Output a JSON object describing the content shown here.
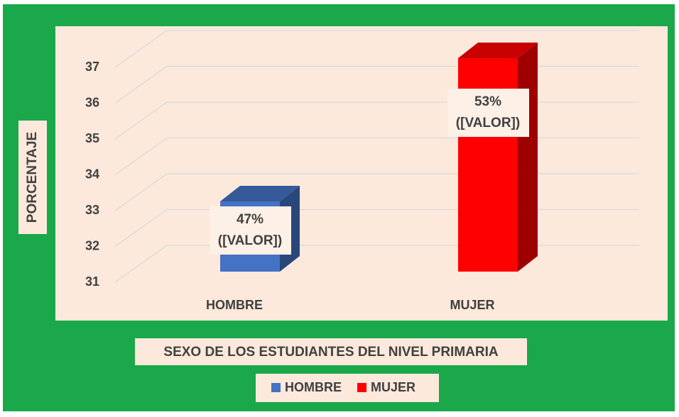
{
  "chart_data": {
    "type": "bar3d",
    "title": "SEXO DE LOS ESTUDIANTES DEL NIVEL PRIMARIA",
    "y_label": "PORCENTAJE",
    "categories": [
      "HOMBRE",
      "MUJER"
    ],
    "series": [
      {
        "name": "HOMBRE",
        "color": "#4472c4",
        "values": [
          33,
          null
        ]
      },
      {
        "name": "MUJER",
        "color": "#ff0000",
        "values": [
          null,
          37
        ]
      }
    ],
    "annotations": [
      [
        "47%",
        "([VALOR])"
      ],
      [
        "53%",
        "([VALOR])"
      ]
    ],
    "ylim": [
      31,
      37
    ],
    "yticks": [
      31,
      32,
      33,
      34,
      35,
      36,
      37
    ],
    "grid": true,
    "legend": "bottom"
  }
}
